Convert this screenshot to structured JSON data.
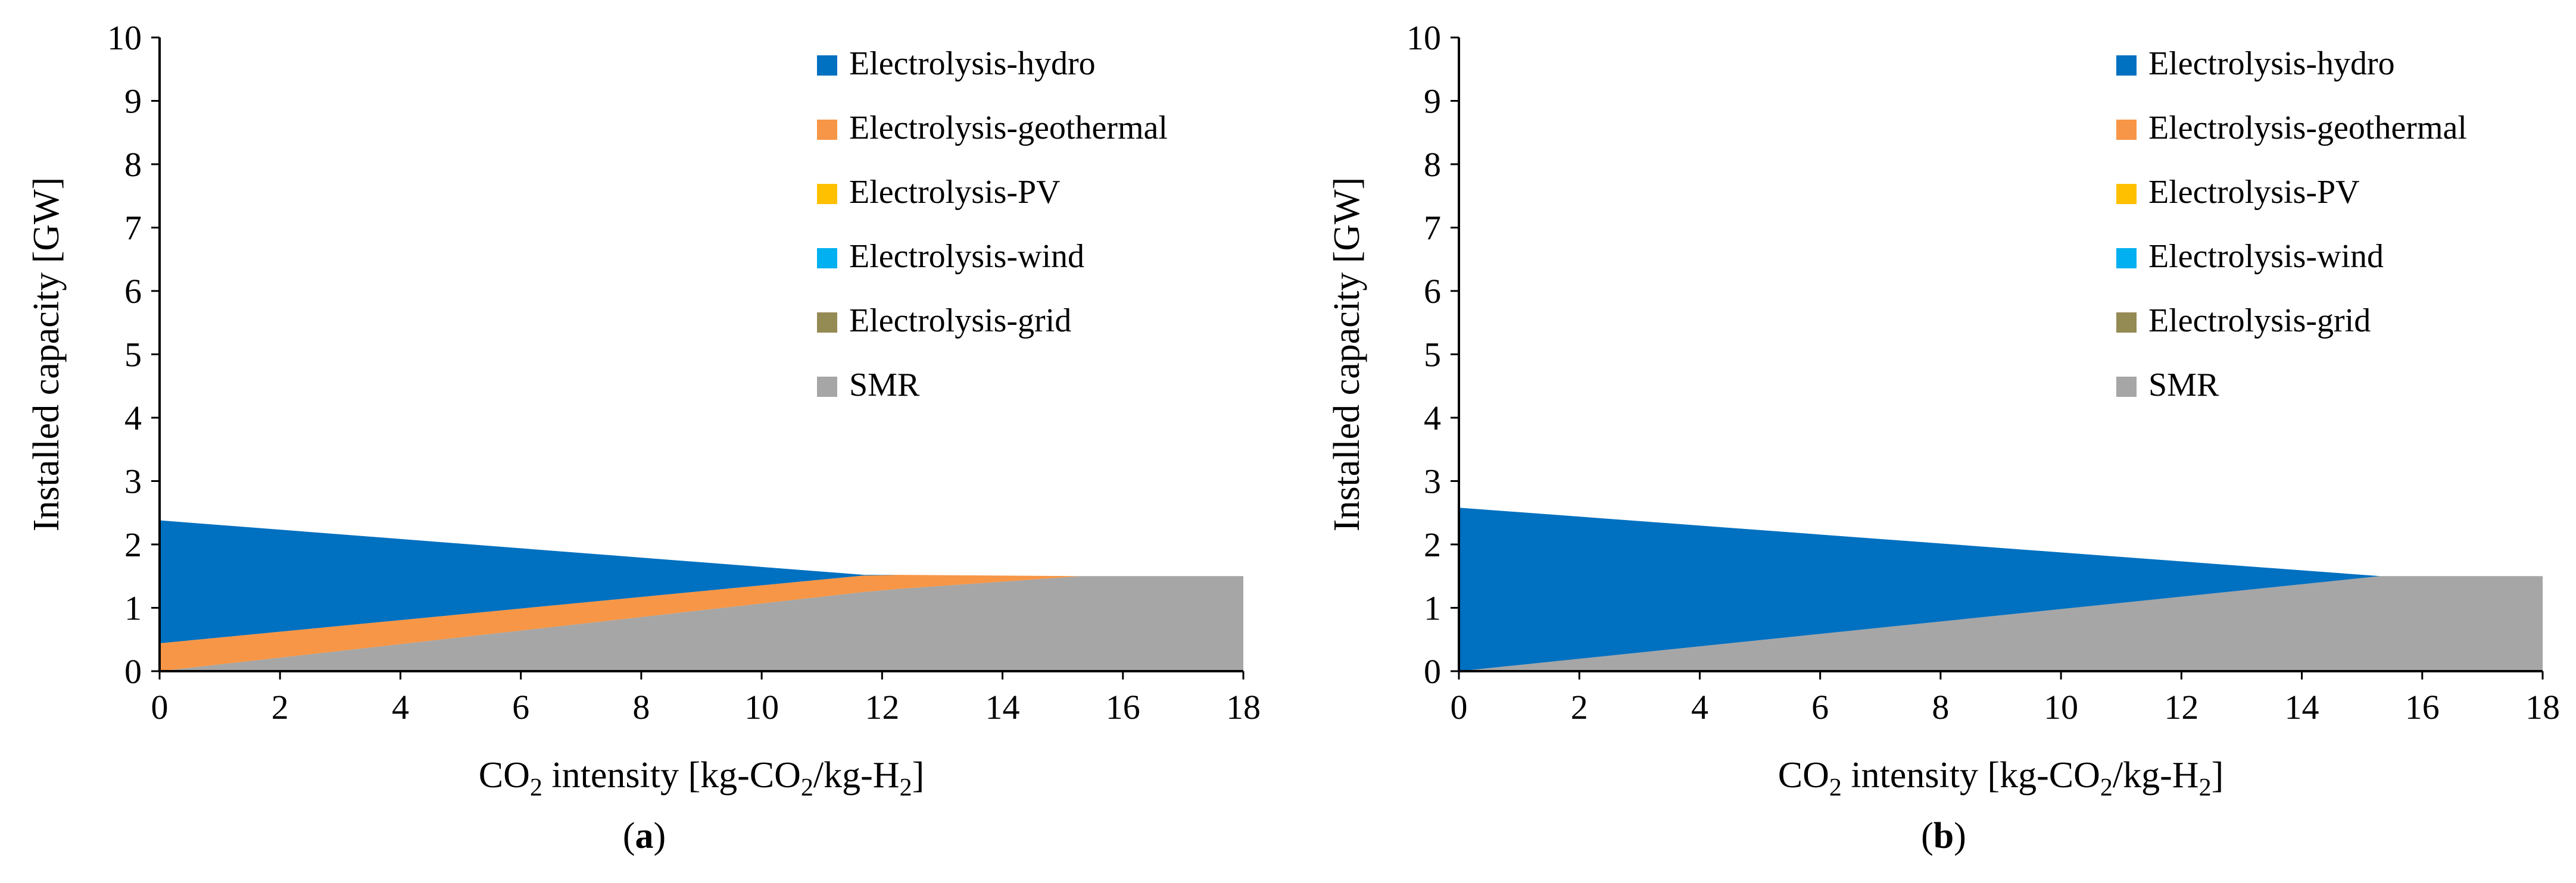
{
  "chart_data": [
    {
      "type": "area",
      "panel_label": "(a)",
      "panel_letter": "a",
      "xlabel": "CO2 intensity [kg-CO2/kg-H2]",
      "xlabel_parts": [
        "CO",
        "2",
        " intensity [kg-CO",
        "2",
        "/kg-H",
        "2",
        "]"
      ],
      "ylabel": "Installed capacity [GW]",
      "xlim": [
        0,
        18
      ],
      "ylim": [
        0,
        10
      ],
      "xticks": [
        "0",
        "2",
        "4",
        "6",
        "8",
        "10",
        "12",
        "14",
        "16",
        "18"
      ],
      "yticks": [
        "0",
        "1",
        "2",
        "3",
        "4",
        "5",
        "6",
        "7",
        "8",
        "9",
        "10"
      ],
      "legend_position": "top-right",
      "legend": [
        {
          "name": "Electrolysis-hydro",
          "color": "#0070c0"
        },
        {
          "name": "Electrolysis-geothermal",
          "color": "#f79646"
        },
        {
          "name": "Electrolysis-PV",
          "color": "#ffc000"
        },
        {
          "name": "Electrolysis-wind",
          "color": "#00b0f0"
        },
        {
          "name": "Electrolysis-grid",
          "color": "#948a54"
        },
        {
          "name": "SMR",
          "color": "#a6a6a6"
        }
      ],
      "x": [
        0,
        11.7,
        12.3,
        15.3,
        18
      ],
      "series": [
        {
          "name": "SMR",
          "color": "#a6a6a6",
          "values": [
            0,
            1.25,
            1.3,
            1.5,
            1.5
          ]
        },
        {
          "name": "Electrolysis-geothermal",
          "color": "#f79646",
          "values": [
            0.44,
            0.26,
            0.22,
            0,
            0
          ]
        },
        {
          "name": "Electrolysis-hydro",
          "color": "#0070c0",
          "values": [
            1.94,
            0.01,
            0,
            0,
            0
          ]
        }
      ]
    },
    {
      "type": "area",
      "panel_label": "(b)",
      "panel_letter": "b",
      "xlabel": "CO2 intensity [kg-CO2/kg-H2]",
      "xlabel_parts": [
        "CO",
        "2",
        " intensity [kg-CO",
        "2",
        "/kg-H",
        "2",
        "]"
      ],
      "ylabel": "Installed capacity [GW]",
      "xlim": [
        0,
        18
      ],
      "ylim": [
        0,
        10
      ],
      "xticks": [
        "0",
        "2",
        "4",
        "6",
        "8",
        "10",
        "12",
        "14",
        "16",
        "18"
      ],
      "yticks": [
        "0",
        "1",
        "2",
        "3",
        "4",
        "5",
        "6",
        "7",
        "8",
        "9",
        "10"
      ],
      "legend_position": "top-right",
      "legend": [
        {
          "name": "Electrolysis-hydro",
          "color": "#0070c0"
        },
        {
          "name": "Electrolysis-geothermal",
          "color": "#f79646"
        },
        {
          "name": "Electrolysis-PV",
          "color": "#ffc000"
        },
        {
          "name": "Electrolysis-wind",
          "color": "#00b0f0"
        },
        {
          "name": "Electrolysis-grid",
          "color": "#948a54"
        },
        {
          "name": "SMR",
          "color": "#a6a6a6"
        }
      ],
      "x": [
        0,
        15.3,
        18
      ],
      "series": [
        {
          "name": "SMR",
          "color": "#a6a6a6",
          "values": [
            0,
            1.5,
            1.5
          ]
        },
        {
          "name": "Electrolysis-hydro",
          "color": "#0070c0",
          "values": [
            2.58,
            0,
            0
          ]
        }
      ]
    }
  ]
}
